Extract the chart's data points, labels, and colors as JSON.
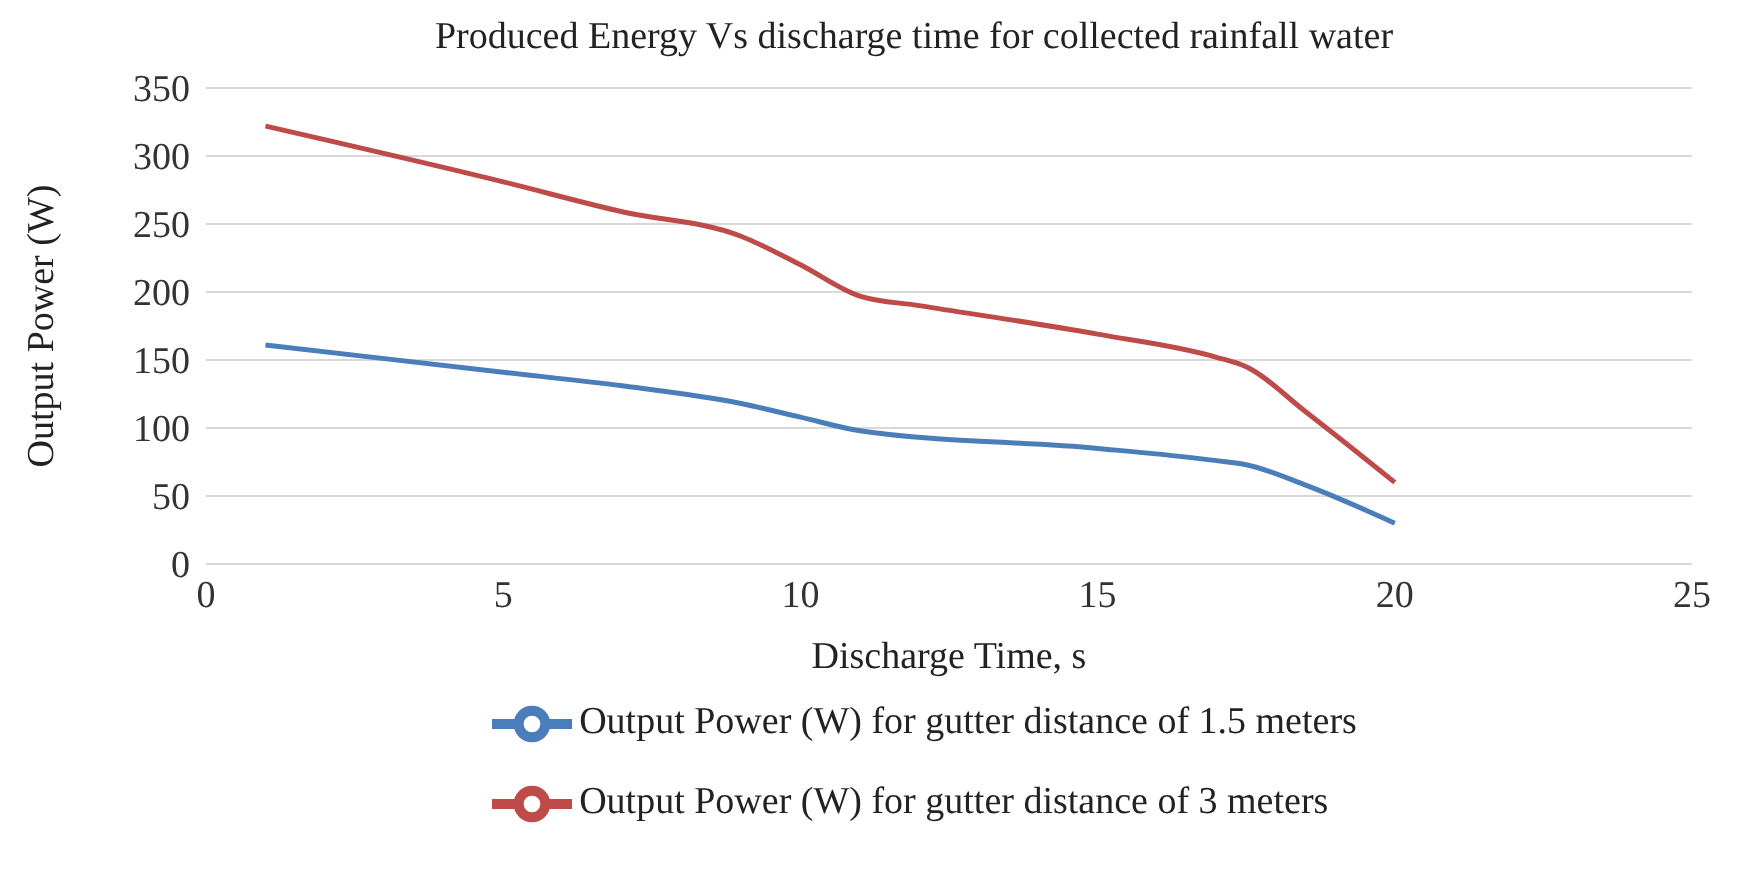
{
  "chart_data": {
    "type": "line",
    "title": "Produced Energy Vs discharge time for collected rainfall water",
    "xlabel": "Discharge Time, s",
    "ylabel": "Output Power (W)",
    "xlim": [
      0,
      25
    ],
    "xticks": [
      0,
      5,
      10,
      15,
      20,
      25
    ],
    "ylim": [
      0,
      350
    ],
    "yticks": [
      0,
      50,
      100,
      150,
      200,
      250,
      300,
      350
    ],
    "grid": "y",
    "legend": "bottom",
    "marker": "none",
    "line_style": "solid",
    "series": [
      {
        "name": "Output Power (W) for gutter distance of 1.5 meters",
        "color": "#4a7ebb",
        "x": [
          1,
          5,
          7,
          9,
          10,
          11,
          15,
          17,
          17.5,
          18.5,
          20
        ],
        "values": [
          161,
          141,
          131,
          118,
          108,
          98,
          85,
          76,
          73,
          58,
          30
        ]
      },
      {
        "name": "Output Power (W) for gutter distance of 3 meters",
        "color": "#be4b48",
        "x": [
          1,
          5,
          7,
          9,
          10,
          11,
          12,
          15,
          17,
          17.5,
          18.5,
          20
        ],
        "values": [
          322,
          281,
          259,
          241,
          220,
          197,
          190,
          169,
          152,
          145,
          112,
          60
        ]
      }
    ]
  }
}
